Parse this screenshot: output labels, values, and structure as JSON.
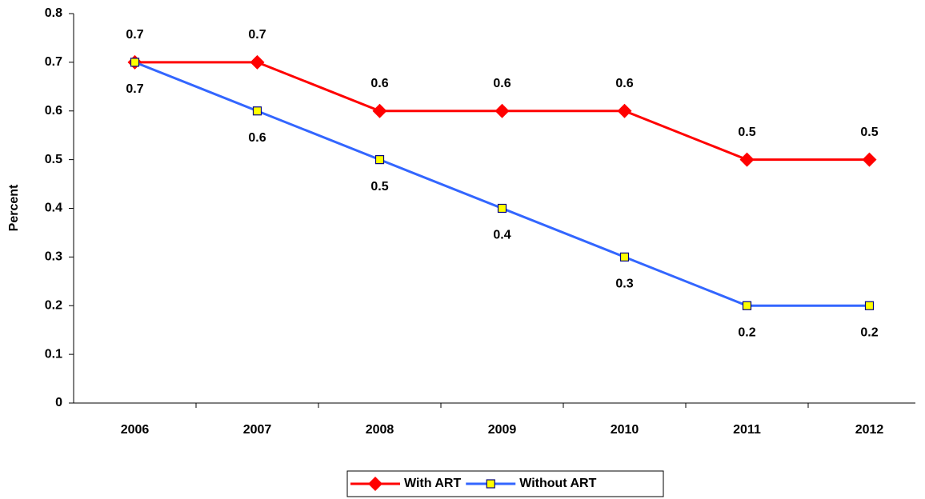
{
  "chart_data": {
    "type": "line",
    "y_label": "Percent",
    "categories": [
      "2006",
      "2007",
      "2008",
      "2009",
      "2010",
      "2011",
      "2012"
    ],
    "series": [
      {
        "name": "With ART",
        "color": "#ff0000",
        "marker": "diamond",
        "values": [
          0.7,
          0.7,
          0.6,
          0.6,
          0.6,
          0.5,
          0.5
        ]
      },
      {
        "name": "Without ART",
        "color": "#3366ff",
        "marker": "square",
        "values": [
          0.7,
          0.6,
          0.5,
          0.4,
          0.3,
          0.2,
          0.2
        ]
      }
    ],
    "ylim": [
      0,
      0.8
    ],
    "yticks": [
      0,
      0.1,
      0.2,
      0.3,
      0.4,
      0.5,
      0.6,
      0.7,
      0.8
    ],
    "grid": false,
    "legend": "bottom"
  }
}
